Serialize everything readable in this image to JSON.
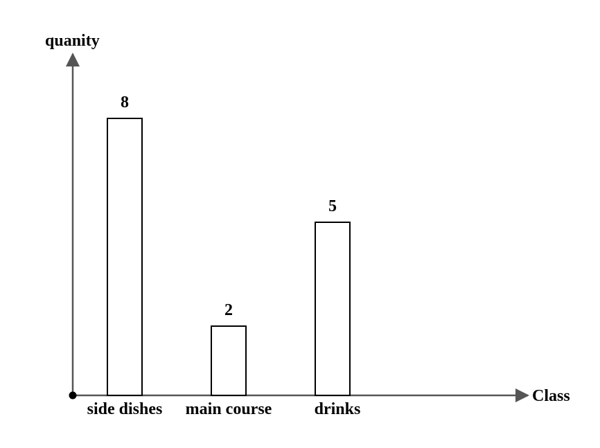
{
  "chart_data": {
    "type": "bar",
    "categories": [
      "side dishes",
      "main course",
      "drinks"
    ],
    "values": [
      8,
      2,
      5
    ],
    "data_labels": [
      "8",
      "2",
      "5"
    ],
    "title": "",
    "xlabel": "Class",
    "ylabel": "quanity",
    "ylim": [
      0,
      10
    ],
    "grid": false,
    "legend": "none",
    "bar_fill": "#ffffff",
    "stroke_color": "#000000",
    "axis_color": "#555555"
  }
}
